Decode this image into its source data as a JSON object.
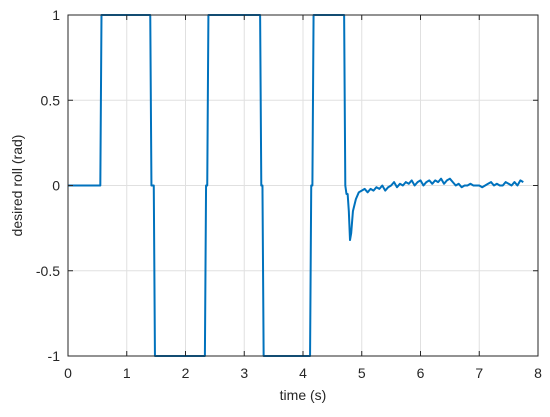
{
  "chart_data": {
    "type": "line",
    "title": "",
    "xlabel": "time (s)",
    "ylabel": "desired roll (rad)",
    "xlim": [
      0,
      8
    ],
    "ylim": [
      -1,
      1
    ],
    "grid": true,
    "xticks": [
      0,
      1,
      2,
      3,
      4,
      5,
      6,
      7,
      8
    ],
    "yticks": [
      -1,
      -0.5,
      0,
      0.5,
      1
    ],
    "xtick_labels": [
      "0",
      "1",
      "2",
      "3",
      "4",
      "5",
      "6",
      "7",
      "8"
    ],
    "ytick_labels": [
      "-1",
      "-0.5",
      "0",
      "0.5",
      "1"
    ],
    "series": [
      {
        "color": "#0072BD",
        "x": [
          0,
          0.55,
          0.57,
          1.4,
          1.42,
          1.46,
          1.48,
          2.33,
          2.35,
          2.37,
          2.39,
          3.27,
          3.29,
          3.31,
          3.33,
          4.12,
          4.14,
          4.16,
          4.18,
          4.7,
          4.72,
          4.74,
          4.76,
          4.78,
          4.8,
          4.82,
          4.85,
          4.9,
          4.95,
          5.0,
          5.05,
          5.1,
          5.15,
          5.2,
          5.25,
          5.3,
          5.35,
          5.4,
          5.45,
          5.5,
          5.55,
          5.6,
          5.65,
          5.7,
          5.75,
          5.8,
          5.85,
          5.9,
          5.95,
          6.0,
          6.05,
          6.1,
          6.15,
          6.2,
          6.25,
          6.3,
          6.35,
          6.4,
          6.45,
          6.5,
          6.55,
          6.6,
          6.65,
          6.7,
          6.75,
          6.8,
          6.85,
          6.9,
          6.95,
          7.0,
          7.05,
          7.1,
          7.15,
          7.2,
          7.25,
          7.3,
          7.35,
          7.4,
          7.45,
          7.5,
          7.55,
          7.6,
          7.65,
          7.7,
          7.75
        ],
        "y": [
          0,
          0,
          1,
          1,
          0,
          0,
          -1,
          -1,
          0,
          0,
          1,
          1,
          0,
          0,
          -1,
          -1,
          0,
          0,
          1,
          1,
          0,
          -0.05,
          -0.05,
          -0.15,
          -0.32,
          -0.28,
          -0.15,
          -0.08,
          -0.04,
          -0.03,
          -0.02,
          -0.04,
          -0.02,
          -0.03,
          -0.01,
          -0.02,
          0.0,
          -0.03,
          -0.01,
          0.0,
          0.02,
          -0.01,
          0.01,
          0.0,
          0.02,
          0.01,
          0.03,
          0.0,
          0.02,
          0.03,
          0.0,
          0.02,
          0.03,
          0.01,
          0.03,
          0.02,
          0.04,
          0.01,
          0.03,
          0.04,
          0.02,
          0.0,
          0.01,
          -0.01,
          0.0,
          0.0,
          0.01,
          0.0,
          0.0,
          0.0,
          -0.01,
          0.0,
          0.01,
          0.02,
          0.0,
          0.01,
          0.0,
          0.0,
          0.02,
          0.01,
          0.0,
          0.02,
          0.0,
          0.03,
          0.02
        ]
      }
    ]
  }
}
